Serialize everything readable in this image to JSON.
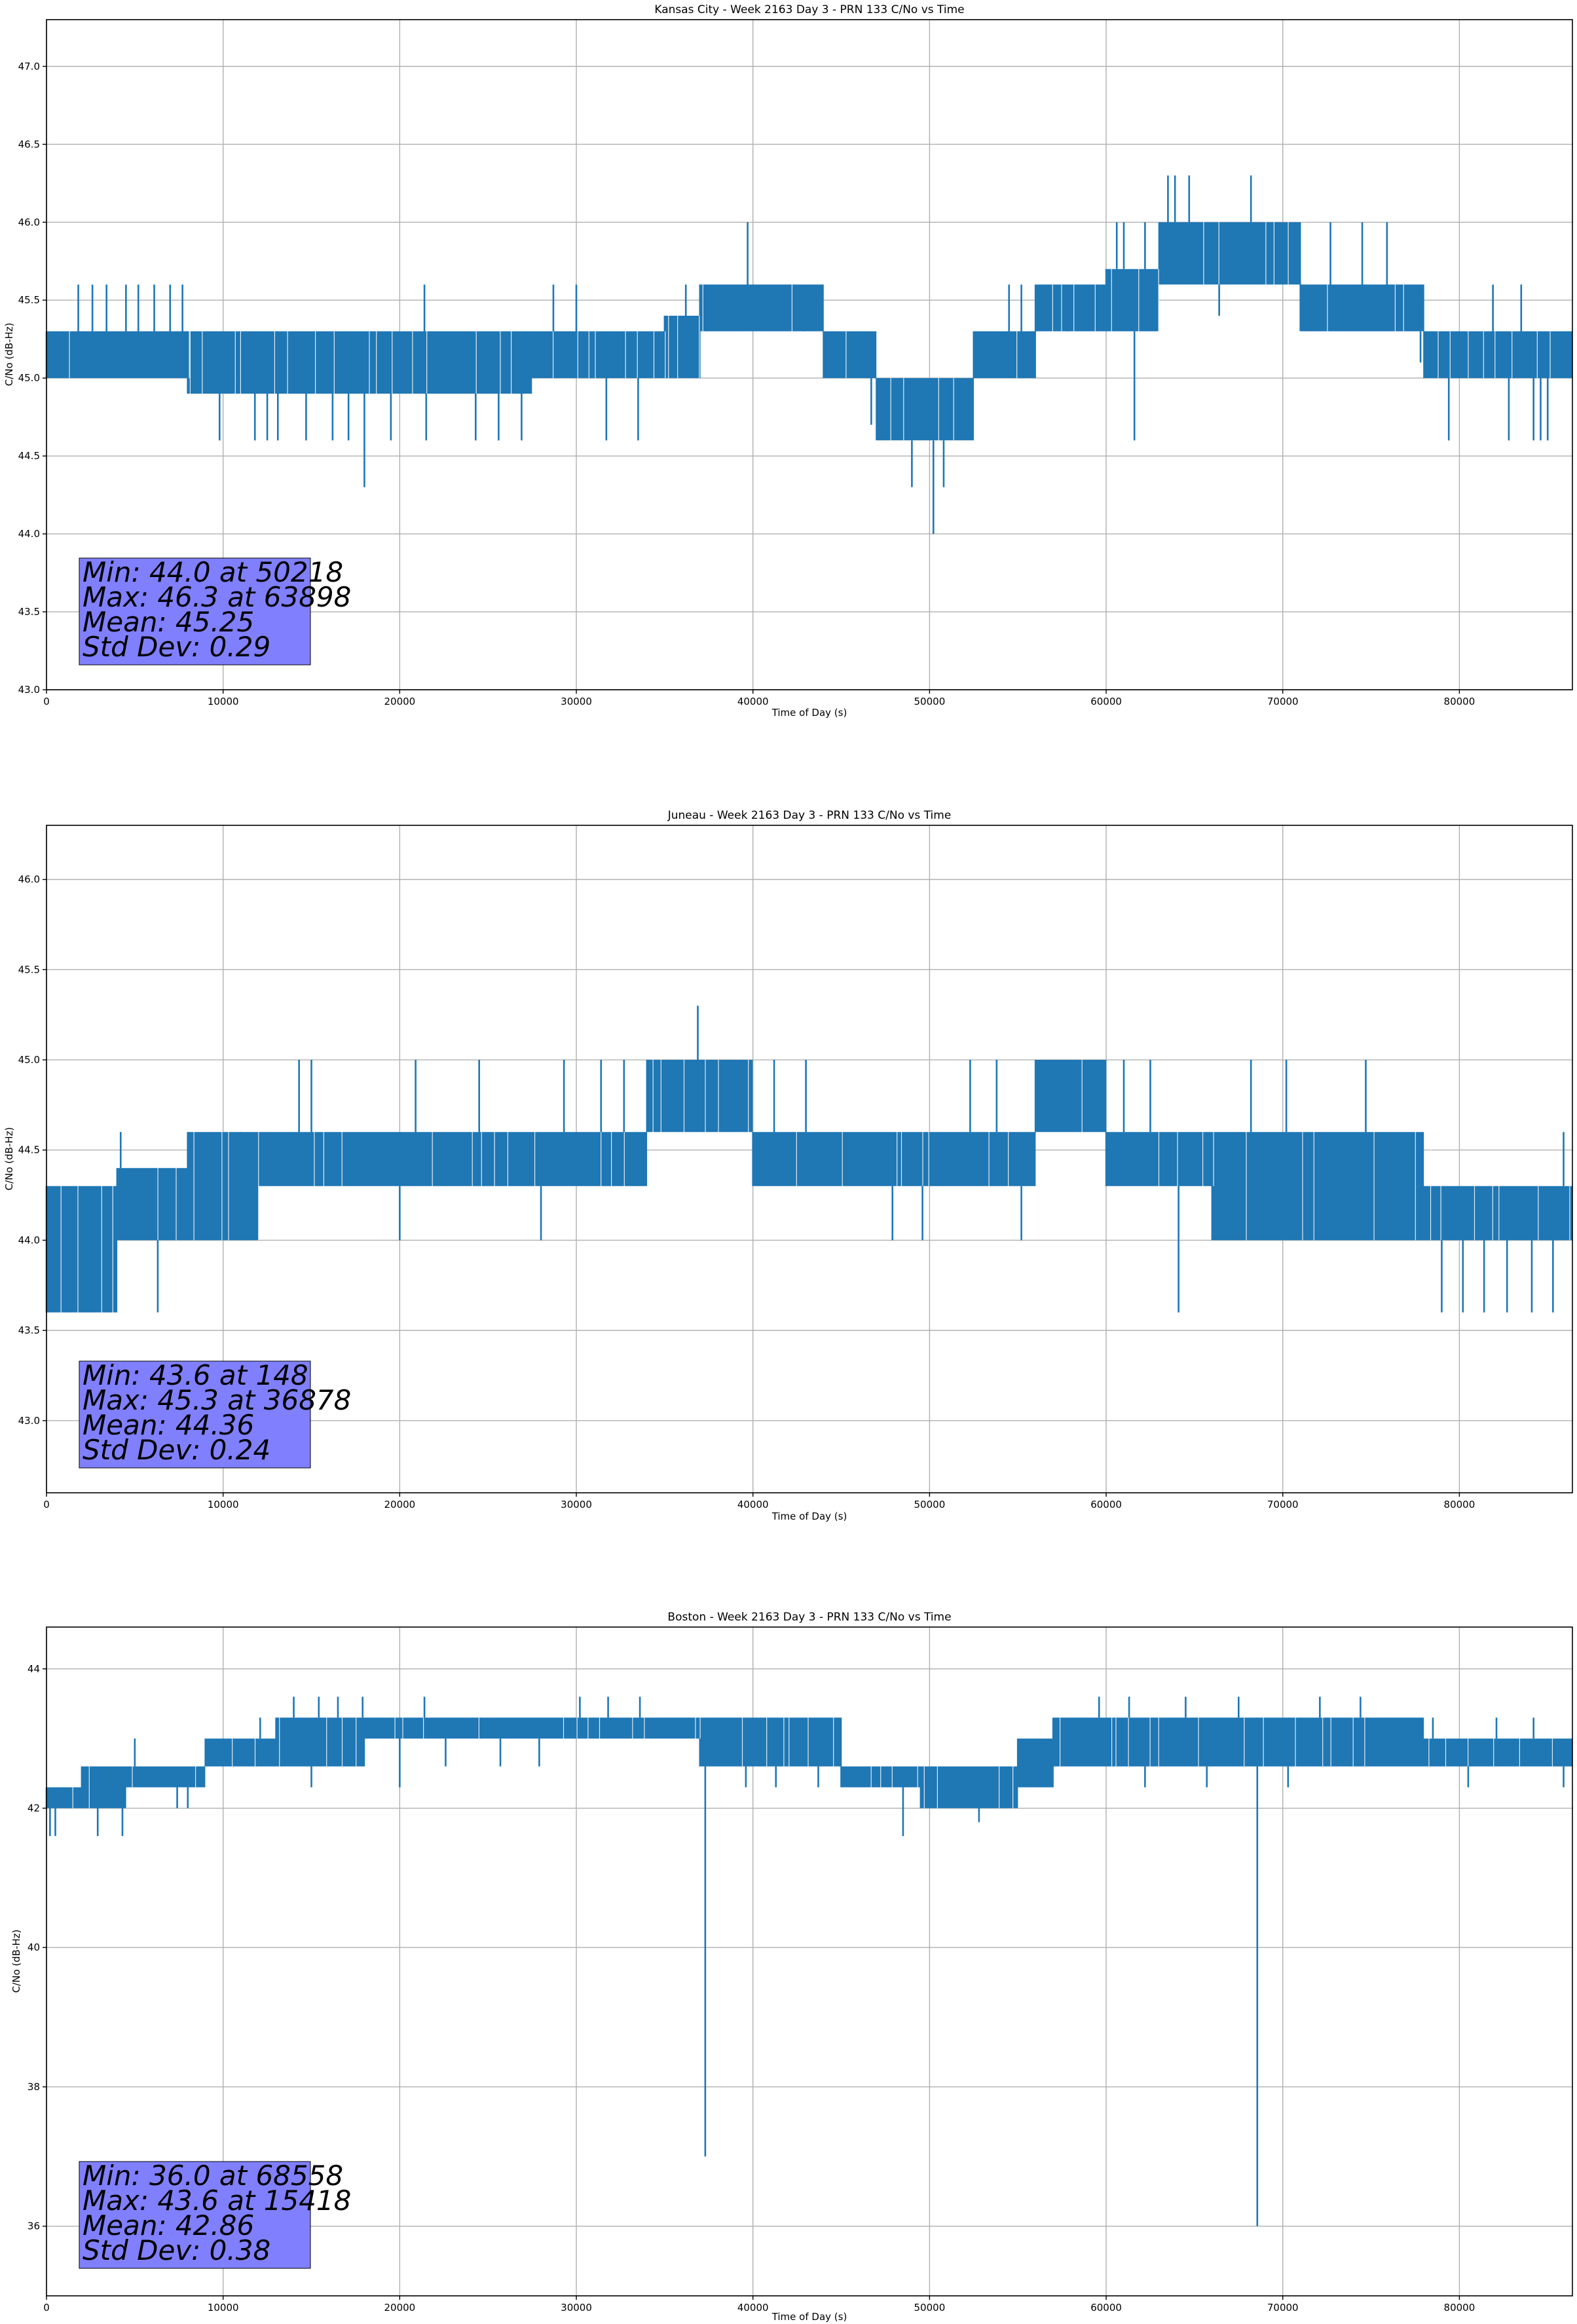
{
  "colors": {
    "series": "#1f77b4",
    "stats_box": "#8080ff",
    "grid": "#b0b0b0"
  },
  "chart_data": [
    {
      "type": "line",
      "title": "Kansas City - Week 2163 Day 3 - PRN 133 C/No vs Time",
      "xlabel": "Time of Day (s)",
      "ylabel": "C/No (dB-Hz)",
      "xlim": [
        0,
        86400
      ],
      "ylim": [
        43.0,
        47.3
      ],
      "xticks": [
        0,
        10000,
        20000,
        30000,
        40000,
        50000,
        60000,
        70000,
        80000
      ],
      "yticks": [
        "43.0",
        "43.5",
        "44.0",
        "44.5",
        "45.0",
        "45.5",
        "46.0",
        "46.5",
        "47.0"
      ],
      "grid": true,
      "stats": [
        "Min: 44.0 at 50218",
        "Max: 46.3 at 63898",
        "Mean: 45.25",
        "Std Dev: 0.29"
      ],
      "series": [
        {
          "name": "C/No",
          "segments": [
            {
              "x0": 0,
              "x1": 8000,
              "lo": 45.0,
              "hi": 45.3
            },
            {
              "x0": 8000,
              "x1": 27500,
              "lo": 44.9,
              "hi": 45.3
            },
            {
              "x0": 27500,
              "x1": 35000,
              "lo": 45.0,
              "hi": 45.3
            },
            {
              "x0": 35000,
              "x1": 37000,
              "lo": 45.0,
              "hi": 45.4
            },
            {
              "x0": 37000,
              "x1": 44000,
              "lo": 45.3,
              "hi": 45.6
            },
            {
              "x0": 44000,
              "x1": 47000,
              "lo": 45.0,
              "hi": 45.3
            },
            {
              "x0": 47000,
              "x1": 52500,
              "lo": 44.6,
              "hi": 45.0
            },
            {
              "x0": 52500,
              "x1": 56000,
              "lo": 45.0,
              "hi": 45.3
            },
            {
              "x0": 56000,
              "x1": 60000,
              "lo": 45.3,
              "hi": 45.6
            },
            {
              "x0": 60000,
              "x1": 63000,
              "lo": 45.3,
              "hi": 45.7
            },
            {
              "x0": 63000,
              "x1": 71000,
              "lo": 45.6,
              "hi": 46.0
            },
            {
              "x0": 71000,
              "x1": 78000,
              "lo": 45.3,
              "hi": 45.6
            },
            {
              "x0": 78000,
              "x1": 86400,
              "lo": 45.0,
              "hi": 45.3
            }
          ],
          "spikes": [
            {
              "x": 1800,
              "y": 45.6
            },
            {
              "x": 2600,
              "y": 45.6
            },
            {
              "x": 3400,
              "y": 45.6
            },
            {
              "x": 4500,
              "y": 45.6
            },
            {
              "x": 5200,
              "y": 45.6
            },
            {
              "x": 6100,
              "y": 45.6
            },
            {
              "x": 7000,
              "y": 45.6
            },
            {
              "x": 7700,
              "y": 45.6
            },
            {
              "x": 9800,
              "y": 44.6
            },
            {
              "x": 11800,
              "y": 44.6
            },
            {
              "x": 12500,
              "y": 44.6
            },
            {
              "x": 13100,
              "y": 44.6
            },
            {
              "x": 14700,
              "y": 44.6
            },
            {
              "x": 16200,
              "y": 44.6
            },
            {
              "x": 17100,
              "y": 44.6
            },
            {
              "x": 18000,
              "y": 44.3
            },
            {
              "x": 19500,
              "y": 44.6
            },
            {
              "x": 21400,
              "y": 45.6
            },
            {
              "x": 21500,
              "y": 44.6
            },
            {
              "x": 24300,
              "y": 44.6
            },
            {
              "x": 25600,
              "y": 44.6
            },
            {
              "x": 26900,
              "y": 44.6
            },
            {
              "x": 28700,
              "y": 45.6
            },
            {
              "x": 30000,
              "y": 45.6
            },
            {
              "x": 31700,
              "y": 44.6
            },
            {
              "x": 33500,
              "y": 44.6
            },
            {
              "x": 36200,
              "y": 45.6
            },
            {
              "x": 37400,
              "y": 45.6
            },
            {
              "x": 39700,
              "y": 46.0
            },
            {
              "x": 42900,
              "y": 45.6
            },
            {
              "x": 46700,
              "y": 44.7
            },
            {
              "x": 47600,
              "y": 44.6
            },
            {
              "x": 48000,
              "y": 44.6
            },
            {
              "x": 49000,
              "y": 44.3
            },
            {
              "x": 50218,
              "y": 44.0
            },
            {
              "x": 50800,
              "y": 44.3
            },
            {
              "x": 51700,
              "y": 44.6
            },
            {
              "x": 54500,
              "y": 45.6
            },
            {
              "x": 55200,
              "y": 45.6
            },
            {
              "x": 57800,
              "y": 45.6
            },
            {
              "x": 60600,
              "y": 46.0
            },
            {
              "x": 61000,
              "y": 46.0
            },
            {
              "x": 61600,
              "y": 44.6
            },
            {
              "x": 62200,
              "y": 46.0
            },
            {
              "x": 63500,
              "y": 46.3
            },
            {
              "x": 63898,
              "y": 46.3
            },
            {
              "x": 64700,
              "y": 46.3
            },
            {
              "x": 66400,
              "y": 45.4
            },
            {
              "x": 68200,
              "y": 46.3
            },
            {
              "x": 72700,
              "y": 46.0
            },
            {
              "x": 74500,
              "y": 46.0
            },
            {
              "x": 75900,
              "y": 46.0
            },
            {
              "x": 77800,
              "y": 45.1
            },
            {
              "x": 79400,
              "y": 44.6
            },
            {
              "x": 81900,
              "y": 45.6
            },
            {
              "x": 82800,
              "y": 44.6
            },
            {
              "x": 83500,
              "y": 45.6
            },
            {
              "x": 84200,
              "y": 44.6
            },
            {
              "x": 84600,
              "y": 44.6
            },
            {
              "x": 85000,
              "y": 44.6
            }
          ]
        }
      ]
    },
    {
      "type": "line",
      "title": "Juneau - Week 2163 Day 3 - PRN 133 C/No vs Time",
      "xlabel": "Time of Day (s)",
      "ylabel": "C/No (dB-Hz)",
      "xlim": [
        0,
        86400
      ],
      "ylim": [
        42.6,
        46.3
      ],
      "xticks": [
        0,
        10000,
        20000,
        30000,
        40000,
        50000,
        60000,
        70000,
        80000
      ],
      "yticks": [
        "43.0",
        "43.5",
        "44.0",
        "44.5",
        "45.0",
        "45.5",
        "46.0"
      ],
      "grid": true,
      "stats": [
        "Min: 43.6 at 148",
        "Max: 45.3 at 36878",
        "Mean: 44.36",
        "Std Dev: 0.24"
      ],
      "series": [
        {
          "name": "C/No",
          "segments": [
            {
              "x0": 0,
              "x1": 4000,
              "lo": 43.6,
              "hi": 44.3
            },
            {
              "x0": 4000,
              "x1": 8000,
              "lo": 44.0,
              "hi": 44.4
            },
            {
              "x0": 8000,
              "x1": 12000,
              "lo": 44.0,
              "hi": 44.6
            },
            {
              "x0": 12000,
              "x1": 34000,
              "lo": 44.3,
              "hi": 44.6
            },
            {
              "x0": 34000,
              "x1": 40000,
              "lo": 44.6,
              "hi": 45.0
            },
            {
              "x0": 40000,
              "x1": 56000,
              "lo": 44.3,
              "hi": 44.6
            },
            {
              "x0": 56000,
              "x1": 60000,
              "lo": 44.6,
              "hi": 45.0
            },
            {
              "x0": 60000,
              "x1": 66000,
              "lo": 44.3,
              "hi": 44.6
            },
            {
              "x0": 66000,
              "x1": 78000,
              "lo": 44.0,
              "hi": 44.6
            },
            {
              "x0": 78000,
              "x1": 86400,
              "lo": 44.0,
              "hi": 44.3
            }
          ],
          "spikes": [
            {
              "x": 148,
              "y": 43.6
            },
            {
              "x": 900,
              "y": 43.6
            },
            {
              "x": 1700,
              "y": 43.6
            },
            {
              "x": 2500,
              "y": 43.6
            },
            {
              "x": 3500,
              "y": 43.6
            },
            {
              "x": 4200,
              "y": 44.6
            },
            {
              "x": 6300,
              "y": 43.6
            },
            {
              "x": 11000,
              "y": 44.6
            },
            {
              "x": 14300,
              "y": 45.0
            },
            {
              "x": 15000,
              "y": 45.0
            },
            {
              "x": 20000,
              "y": 44.0
            },
            {
              "x": 20900,
              "y": 45.0
            },
            {
              "x": 24500,
              "y": 45.0
            },
            {
              "x": 28000,
              "y": 44.0
            },
            {
              "x": 29300,
              "y": 45.0
            },
            {
              "x": 31400,
              "y": 45.0
            },
            {
              "x": 32700,
              "y": 45.0
            },
            {
              "x": 36878,
              "y": 45.3
            },
            {
              "x": 41200,
              "y": 45.0
            },
            {
              "x": 43000,
              "y": 45.0
            },
            {
              "x": 47900,
              "y": 44.0
            },
            {
              "x": 49600,
              "y": 44.0
            },
            {
              "x": 52300,
              "y": 45.0
            },
            {
              "x": 53800,
              "y": 45.0
            },
            {
              "x": 55200,
              "y": 44.0
            },
            {
              "x": 61000,
              "y": 45.0
            },
            {
              "x": 62500,
              "y": 45.0
            },
            {
              "x": 64100,
              "y": 43.6
            },
            {
              "x": 68200,
              "y": 45.0
            },
            {
              "x": 70200,
              "y": 45.0
            },
            {
              "x": 74700,
              "y": 45.0
            },
            {
              "x": 79000,
              "y": 43.6
            },
            {
              "x": 80200,
              "y": 43.6
            },
            {
              "x": 81400,
              "y": 43.6
            },
            {
              "x": 82700,
              "y": 43.6
            },
            {
              "x": 84100,
              "y": 43.6
            },
            {
              "x": 85300,
              "y": 43.6
            },
            {
              "x": 85900,
              "y": 44.6
            }
          ]
        }
      ]
    },
    {
      "type": "line",
      "title": "Boston - Week 2163 Day 3 - PRN 133 C/No vs Time",
      "xlabel": "Time of Day (s)",
      "ylabel": "C/No (dB-Hz)",
      "xlim": [
        0,
        86400
      ],
      "ylim": [
        35.0,
        44.6
      ],
      "xticks": [
        0,
        10000,
        20000,
        30000,
        40000,
        50000,
        60000,
        70000,
        80000
      ],
      "yticks": [
        "36",
        "38",
        "40",
        "42",
        "44"
      ],
      "grid": true,
      "stats": [
        "Min: 36.0 at 68558",
        "Max: 43.6 at 15418",
        "Mean: 42.86",
        "Std Dev: 0.38"
      ],
      "series": [
        {
          "name": "C/No",
          "segments": [
            {
              "x0": 0,
              "x1": 2000,
              "lo": 42.0,
              "hi": 42.3
            },
            {
              "x0": 2000,
              "x1": 4500,
              "lo": 42.0,
              "hi": 42.6
            },
            {
              "x0": 4500,
              "x1": 9000,
              "lo": 42.3,
              "hi": 42.6
            },
            {
              "x0": 9000,
              "x1": 13000,
              "lo": 42.6,
              "hi": 43.0
            },
            {
              "x0": 13000,
              "x1": 18000,
              "lo": 42.6,
              "hi": 43.3
            },
            {
              "x0": 18000,
              "x1": 37000,
              "lo": 43.0,
              "hi": 43.3
            },
            {
              "x0": 37000,
              "x1": 45000,
              "lo": 42.6,
              "hi": 43.3
            },
            {
              "x0": 45000,
              "x1": 49500,
              "lo": 42.3,
              "hi": 42.6
            },
            {
              "x0": 49500,
              "x1": 55000,
              "lo": 42.0,
              "hi": 42.6
            },
            {
              "x0": 55000,
              "x1": 57000,
              "lo": 42.3,
              "hi": 43.0
            },
            {
              "x0": 57000,
              "x1": 78000,
              "lo": 42.6,
              "hi": 43.3
            },
            {
              "x0": 78000,
              "x1": 86400,
              "lo": 42.6,
              "hi": 43.0
            }
          ],
          "spikes": [
            {
              "x": 200,
              "y": 41.6
            },
            {
              "x": 500,
              "y": 41.6
            },
            {
              "x": 2900,
              "y": 41.6
            },
            {
              "x": 4300,
              "y": 41.6
            },
            {
              "x": 5000,
              "y": 43.0
            },
            {
              "x": 7400,
              "y": 42.0
            },
            {
              "x": 8000,
              "y": 42.0
            },
            {
              "x": 12100,
              "y": 43.3
            },
            {
              "x": 14000,
              "y": 43.6
            },
            {
              "x": 15000,
              "y": 42.3
            },
            {
              "x": 15418,
              "y": 43.6
            },
            {
              "x": 16500,
              "y": 43.6
            },
            {
              "x": 17900,
              "y": 43.6
            },
            {
              "x": 20000,
              "y": 42.3
            },
            {
              "x": 21400,
              "y": 43.6
            },
            {
              "x": 22600,
              "y": 42.6
            },
            {
              "x": 25700,
              "y": 42.6
            },
            {
              "x": 27900,
              "y": 42.6
            },
            {
              "x": 30200,
              "y": 43.6
            },
            {
              "x": 31800,
              "y": 43.6
            },
            {
              "x": 33600,
              "y": 43.6
            },
            {
              "x": 37300,
              "y": 37.0
            },
            {
              "x": 39600,
              "y": 42.3
            },
            {
              "x": 41300,
              "y": 42.3
            },
            {
              "x": 43700,
              "y": 42.3
            },
            {
              "x": 48500,
              "y": 41.6
            },
            {
              "x": 51000,
              "y": 42.3
            },
            {
              "x": 52800,
              "y": 41.8
            },
            {
              "x": 54300,
              "y": 42.0
            },
            {
              "x": 59600,
              "y": 43.6
            },
            {
              "x": 61300,
              "y": 43.6
            },
            {
              "x": 62200,
              "y": 42.3
            },
            {
              "x": 64500,
              "y": 43.6
            },
            {
              "x": 65700,
              "y": 42.3
            },
            {
              "x": 67500,
              "y": 43.6
            },
            {
              "x": 68558,
              "y": 36.0
            },
            {
              "x": 70300,
              "y": 42.3
            },
            {
              "x": 72100,
              "y": 43.6
            },
            {
              "x": 74400,
              "y": 43.6
            },
            {
              "x": 78500,
              "y": 43.3
            },
            {
              "x": 80500,
              "y": 42.3
            },
            {
              "x": 82100,
              "y": 43.3
            },
            {
              "x": 84200,
              "y": 43.3
            },
            {
              "x": 85900,
              "y": 42.3
            }
          ]
        }
      ]
    }
  ]
}
